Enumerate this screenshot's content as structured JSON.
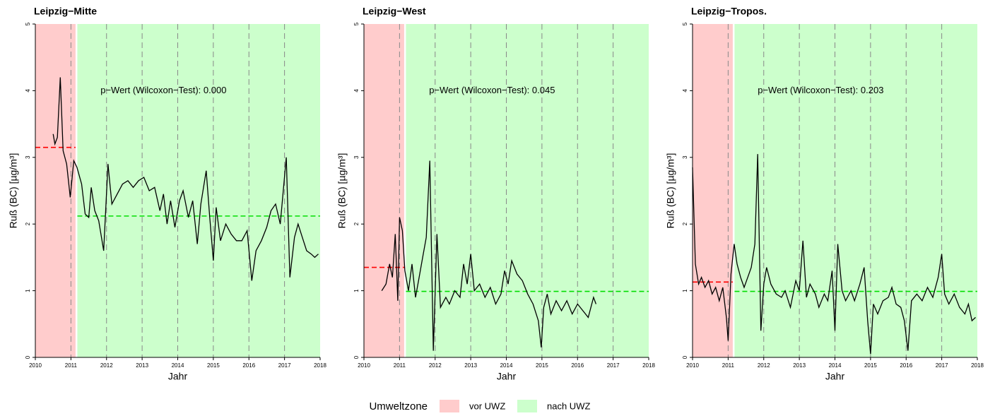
{
  "chart_data": [
    {
      "type": "line",
      "title": "Leipzig−Mitte",
      "xlabel": "Jahr",
      "ylabel": "Ruß (BC) [µg/m³]",
      "annotation": "p−Wert (Wilcoxon−Test): 0.000",
      "xlim": [
        2010,
        2018
      ],
      "xticks": [
        2010,
        2011,
        2012,
        2013,
        2014,
        2015,
        2016,
        2017,
        2018
      ],
      "ylim": [
        0,
        5
      ],
      "yticks": [
        0,
        1,
        2,
        3,
        4,
        5
      ],
      "vgrid": true,
      "color": "#000000",
      "periods": [
        {
          "from": 2010,
          "to": 2011.13,
          "mean": 3.15
        },
        {
          "from": 2011.18,
          "to": 2018,
          "mean": 2.12
        }
      ],
      "x": [
        2010.5,
        2010.55,
        2010.62,
        2010.7,
        2010.78,
        2010.88,
        2010.98,
        2011.08,
        2011.17,
        2011.3,
        2011.4,
        2011.5,
        2011.57,
        2011.67,
        2011.78,
        2011.92,
        2012.04,
        2012.15,
        2012.3,
        2012.45,
        2012.6,
        2012.75,
        2012.9,
        2013.05,
        2013.2,
        2013.35,
        2013.5,
        2013.6,
        2013.7,
        2013.8,
        2013.92,
        2014.05,
        2014.15,
        2014.3,
        2014.42,
        2014.55,
        2014.65,
        2014.8,
        2014.9,
        2015.0,
        2015.08,
        2015.2,
        2015.35,
        2015.5,
        2015.65,
        2015.8,
        2015.95,
        2016.08,
        2016.2,
        2016.35,
        2016.5,
        2016.62,
        2016.75,
        2016.88,
        2017.05,
        2017.15,
        2017.28,
        2017.38,
        2017.5,
        2017.62,
        2017.75,
        2017.85,
        2017.95
      ],
      "values": [
        3.35,
        3.2,
        3.3,
        4.2,
        3.1,
        2.9,
        2.4,
        2.95,
        2.85,
        2.6,
        2.15,
        2.1,
        2.55,
        2.2,
        2.05,
        1.6,
        2.9,
        2.3,
        2.45,
        2.6,
        2.65,
        2.55,
        2.65,
        2.7,
        2.5,
        2.55,
        2.2,
        2.45,
        2.0,
        2.35,
        1.95,
        2.35,
        2.5,
        2.1,
        2.35,
        1.7,
        2.3,
        2.8,
        2.1,
        1.45,
        2.25,
        1.75,
        2.0,
        1.85,
        1.75,
        1.75,
        1.9,
        1.15,
        1.6,
        1.75,
        1.95,
        2.2,
        2.3,
        2.0,
        3.0,
        1.2,
        1.8,
        2.0,
        1.8,
        1.6,
        1.55,
        1.5,
        1.55
      ]
    },
    {
      "type": "line",
      "title": "Leipzig−West",
      "xlabel": "Jahr",
      "ylabel": "Ruß (BC) [µg/m³]",
      "annotation": "p−Wert (Wilcoxon−Test): 0.045",
      "xlim": [
        2010,
        2018
      ],
      "xticks": [
        2010,
        2011,
        2012,
        2013,
        2014,
        2015,
        2016,
        2017,
        2018
      ],
      "ylim": [
        0,
        5
      ],
      "yticks": [
        0,
        1,
        2,
        3,
        4,
        5
      ],
      "vgrid": true,
      "color": "#000000",
      "periods": [
        {
          "from": 2010,
          "to": 2011.13,
          "mean": 1.35
        },
        {
          "from": 2011.18,
          "to": 2018,
          "mean": 0.99
        }
      ],
      "x": [
        2010.5,
        2010.62,
        2010.72,
        2010.8,
        2010.88,
        2010.95,
        2011.0,
        2011.08,
        2011.15,
        2011.25,
        2011.35,
        2011.45,
        2011.55,
        2011.65,
        2011.75,
        2011.85,
        2011.95,
        2012.05,
        2012.15,
        2012.3,
        2012.4,
        2012.55,
        2012.7,
        2012.8,
        2012.9,
        2013.0,
        2013.1,
        2013.25,
        2013.4,
        2013.55,
        2013.7,
        2013.85,
        2013.95,
        2014.05,
        2014.15,
        2014.3,
        2014.45,
        2014.6,
        2014.75,
        2014.9,
        2014.98,
        2015.05,
        2015.15,
        2015.25,
        2015.4,
        2015.55,
        2015.7,
        2015.85,
        2016.0,
        2016.15,
        2016.3,
        2016.45,
        2016.52
      ],
      "values": [
        1.0,
        1.1,
        1.4,
        1.2,
        1.85,
        0.85,
        2.1,
        1.9,
        1.3,
        1.0,
        1.4,
        0.9,
        1.2,
        1.5,
        1.8,
        2.95,
        0.1,
        1.85,
        0.75,
        0.9,
        0.8,
        1.0,
        0.9,
        1.4,
        1.1,
        1.55,
        1.0,
        1.1,
        0.9,
        1.05,
        0.8,
        0.95,
        1.3,
        1.1,
        1.45,
        1.25,
        1.15,
        0.95,
        0.8,
        0.55,
        0.15,
        0.75,
        0.95,
        0.65,
        0.85,
        0.7,
        0.85,
        0.65,
        0.8,
        0.7,
        0.6,
        0.9,
        0.8
      ]
    },
    {
      "type": "line",
      "title": "Leipzig−Tropos.",
      "xlabel": "Jahr",
      "ylabel": "Ruß (BC) [µg/m³]",
      "annotation": "p−Wert (Wilcoxon−Test): 0.203",
      "xlim": [
        2010,
        2018
      ],
      "xticks": [
        2010,
        2011,
        2012,
        2013,
        2014,
        2015,
        2016,
        2017,
        2018
      ],
      "ylim": [
        0,
        5
      ],
      "yticks": [
        0,
        1,
        2,
        3,
        4,
        5
      ],
      "vgrid": true,
      "color": "#000000",
      "periods": [
        {
          "from": 2010,
          "to": 2011.13,
          "mean": 1.13
        },
        {
          "from": 2011.18,
          "to": 2018,
          "mean": 0.99
        }
      ],
      "x": [
        2010.0,
        2010.08,
        2010.17,
        2010.25,
        2010.35,
        2010.45,
        2010.55,
        2010.65,
        2010.75,
        2010.85,
        2010.95,
        2011.0,
        2011.08,
        2011.17,
        2011.25,
        2011.35,
        2011.45,
        2011.55,
        2011.65,
        2011.75,
        2011.83,
        2011.92,
        2012.0,
        2012.08,
        2012.2,
        2012.35,
        2012.5,
        2012.6,
        2012.75,
        2012.9,
        2013.0,
        2013.1,
        2013.2,
        2013.3,
        2013.45,
        2013.55,
        2013.7,
        2013.8,
        2013.92,
        2014.0,
        2014.08,
        2014.2,
        2014.3,
        2014.45,
        2014.55,
        2014.7,
        2014.82,
        2014.92,
        2015.0,
        2015.08,
        2015.2,
        2015.35,
        2015.5,
        2015.6,
        2015.72,
        2015.85,
        2015.95,
        2016.05,
        2016.15,
        2016.3,
        2016.45,
        2016.6,
        2016.75,
        2016.9,
        2017.0,
        2017.08,
        2017.2,
        2017.35,
        2017.5,
        2017.65,
        2017.75,
        2017.85,
        2017.95
      ],
      "values": [
        2.85,
        1.4,
        1.1,
        1.2,
        1.05,
        1.15,
        0.95,
        1.05,
        0.85,
        1.05,
        0.6,
        0.25,
        1.25,
        1.7,
        1.4,
        1.2,
        1.05,
        1.2,
        1.35,
        1.7,
        3.05,
        0.4,
        1.1,
        1.35,
        1.1,
        0.95,
        0.9,
        1.0,
        0.75,
        1.15,
        1.0,
        1.75,
        0.9,
        1.1,
        0.95,
        0.75,
        0.95,
        0.85,
        1.3,
        0.4,
        1.7,
        1.0,
        0.85,
        1.0,
        0.85,
        1.1,
        1.35,
        0.55,
        0.05,
        0.8,
        0.65,
        0.85,
        0.9,
        1.05,
        0.8,
        0.75,
        0.55,
        0.1,
        0.85,
        0.95,
        0.85,
        1.05,
        0.9,
        1.2,
        1.55,
        0.95,
        0.8,
        0.95,
        0.75,
        0.65,
        0.8,
        0.55,
        0.6
      ]
    }
  ],
  "legend": {
    "title": "Umweltzone",
    "items": [
      {
        "label": "vor UWZ",
        "color": "#ffcccc",
        "mean_color": "#ff0000"
      },
      {
        "label": "nach UWZ",
        "color": "#ccffcc",
        "mean_color": "#00dd00"
      }
    ]
  }
}
